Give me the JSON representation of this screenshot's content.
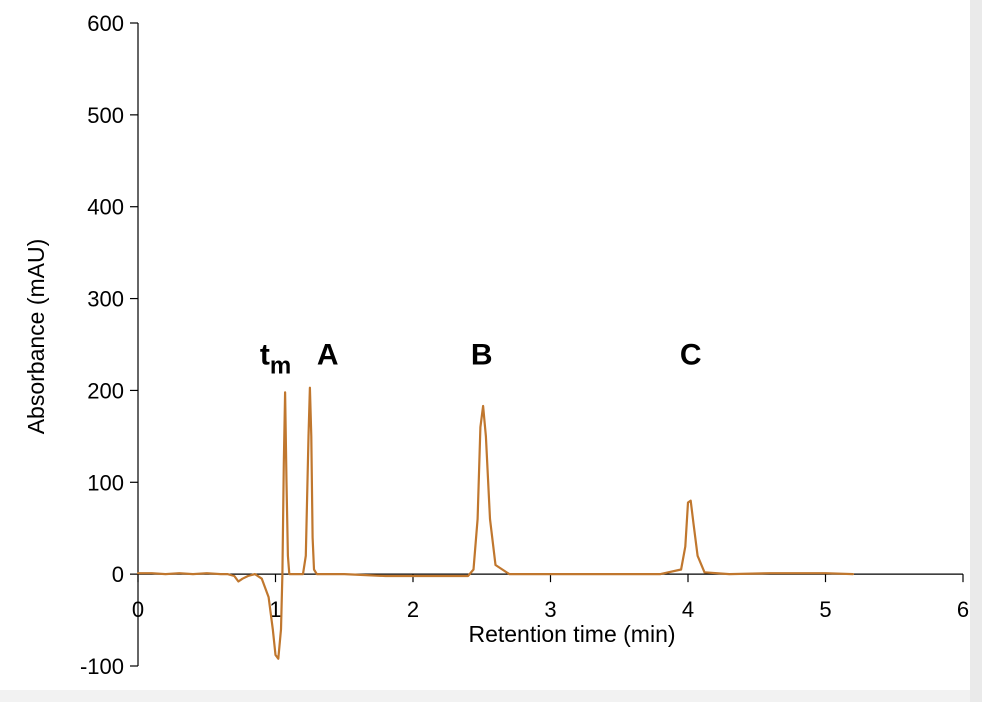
{
  "chart_data": {
    "type": "line",
    "title": "",
    "xlabel": "Retention time (min)",
    "ylabel": "Absorbance (mAU)",
    "xlim": [
      0,
      6
    ],
    "ylim": [
      -100,
      600
    ],
    "x_ticks": [
      0,
      1,
      2,
      3,
      4,
      5,
      6
    ],
    "y_ticks": [
      -100,
      0,
      100,
      200,
      300,
      400,
      500,
      600
    ],
    "x_tick_labels": [
      "0",
      "1",
      "2",
      "3",
      "4",
      "5",
      "6"
    ],
    "y_tick_labels": [
      "-100",
      "0",
      "100",
      "200",
      "300",
      "400",
      "500",
      "600"
    ],
    "grid": false,
    "legend": "none",
    "series": [
      {
        "color": "#c0772e",
        "x": [
          0.0,
          0.1,
          0.2,
          0.3,
          0.4,
          0.5,
          0.6,
          0.65,
          0.7,
          0.73,
          0.76,
          0.8,
          0.85,
          0.9,
          0.95,
          0.98,
          1.0,
          1.02,
          1.04,
          1.05,
          1.06,
          1.07,
          1.08,
          1.09,
          1.1,
          1.12,
          1.15,
          1.2,
          1.22,
          1.24,
          1.25,
          1.26,
          1.27,
          1.28,
          1.3,
          1.35,
          1.5,
          1.8,
          2.0,
          2.2,
          2.4,
          2.44,
          2.47,
          2.49,
          2.51,
          2.53,
          2.56,
          2.6,
          2.7,
          3.0,
          3.5,
          3.8,
          3.95,
          3.98,
          4.0,
          4.02,
          4.04,
          4.07,
          4.12,
          4.3,
          4.6,
          5.0,
          5.2
        ],
        "y": [
          1,
          1,
          0,
          1,
          0,
          1,
          0,
          0,
          -2,
          -8,
          -5,
          -2,
          0,
          -5,
          -25,
          -60,
          -88,
          -92,
          -60,
          0,
          120,
          198,
          100,
          20,
          0,
          0,
          0,
          0,
          20,
          150,
          203,
          150,
          40,
          5,
          0,
          0,
          0,
          -2,
          -2,
          -2,
          -2,
          5,
          60,
          160,
          183,
          150,
          60,
          10,
          0,
          0,
          0,
          0,
          5,
          30,
          78,
          80,
          55,
          20,
          2,
          0,
          1,
          1,
          0
        ]
      }
    ],
    "annotations": [
      {
        "label": "t",
        "subscript": "m",
        "x": 1.0,
        "y": 240
      },
      {
        "label": "A",
        "x": 1.38,
        "y": 240
      },
      {
        "label": "B",
        "x": 2.5,
        "y": 240
      },
      {
        "label": "C",
        "x": 4.02,
        "y": 240
      }
    ]
  }
}
